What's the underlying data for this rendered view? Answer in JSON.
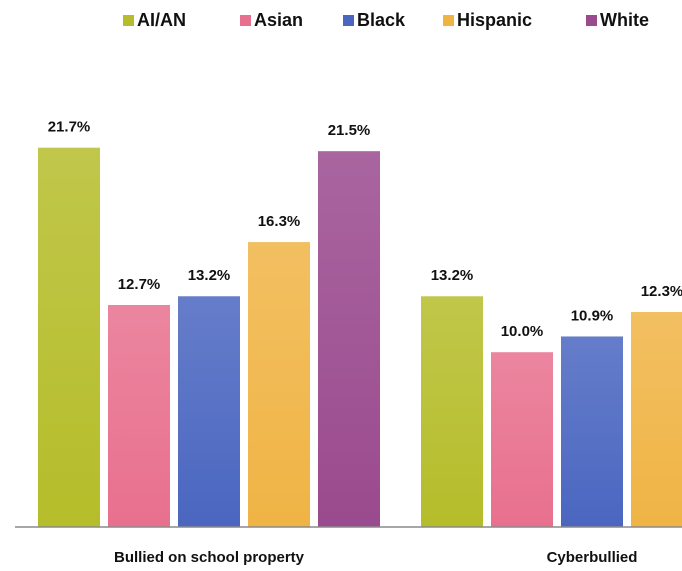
{
  "chart_data": {
    "type": "bar",
    "categories": [
      "Bullied on school property",
      "Cyberbullied"
    ],
    "series": [
      {
        "name": "AI/AN",
        "color": "#b5bd2a",
        "values": [
          21.7,
          13.2
        ],
        "value_labels": [
          "21.7%",
          "13.2%"
        ]
      },
      {
        "name": "Asian",
        "color": "#e8708e",
        "values": [
          12.7,
          10.0
        ],
        "value_labels": [
          "12.7%",
          "10.0%"
        ]
      },
      {
        "name": "Black",
        "color": "#4a66c0",
        "values": [
          13.2,
          10.9
        ],
        "value_labels": [
          "13.2%",
          "10.9%"
        ]
      },
      {
        "name": "Hispanic",
        "color": "#f0b445",
        "values": [
          16.3,
          12.3
        ],
        "value_labels": [
          "16.3%",
          "12.3%"
        ]
      },
      {
        "name": "White",
        "color": "#9a4a8e",
        "values": [
          21.5,
          null
        ],
        "value_labels": [
          "21.5%",
          null
        ]
      }
    ],
    "ylim": [
      0,
      25
    ],
    "legend": "top"
  }
}
